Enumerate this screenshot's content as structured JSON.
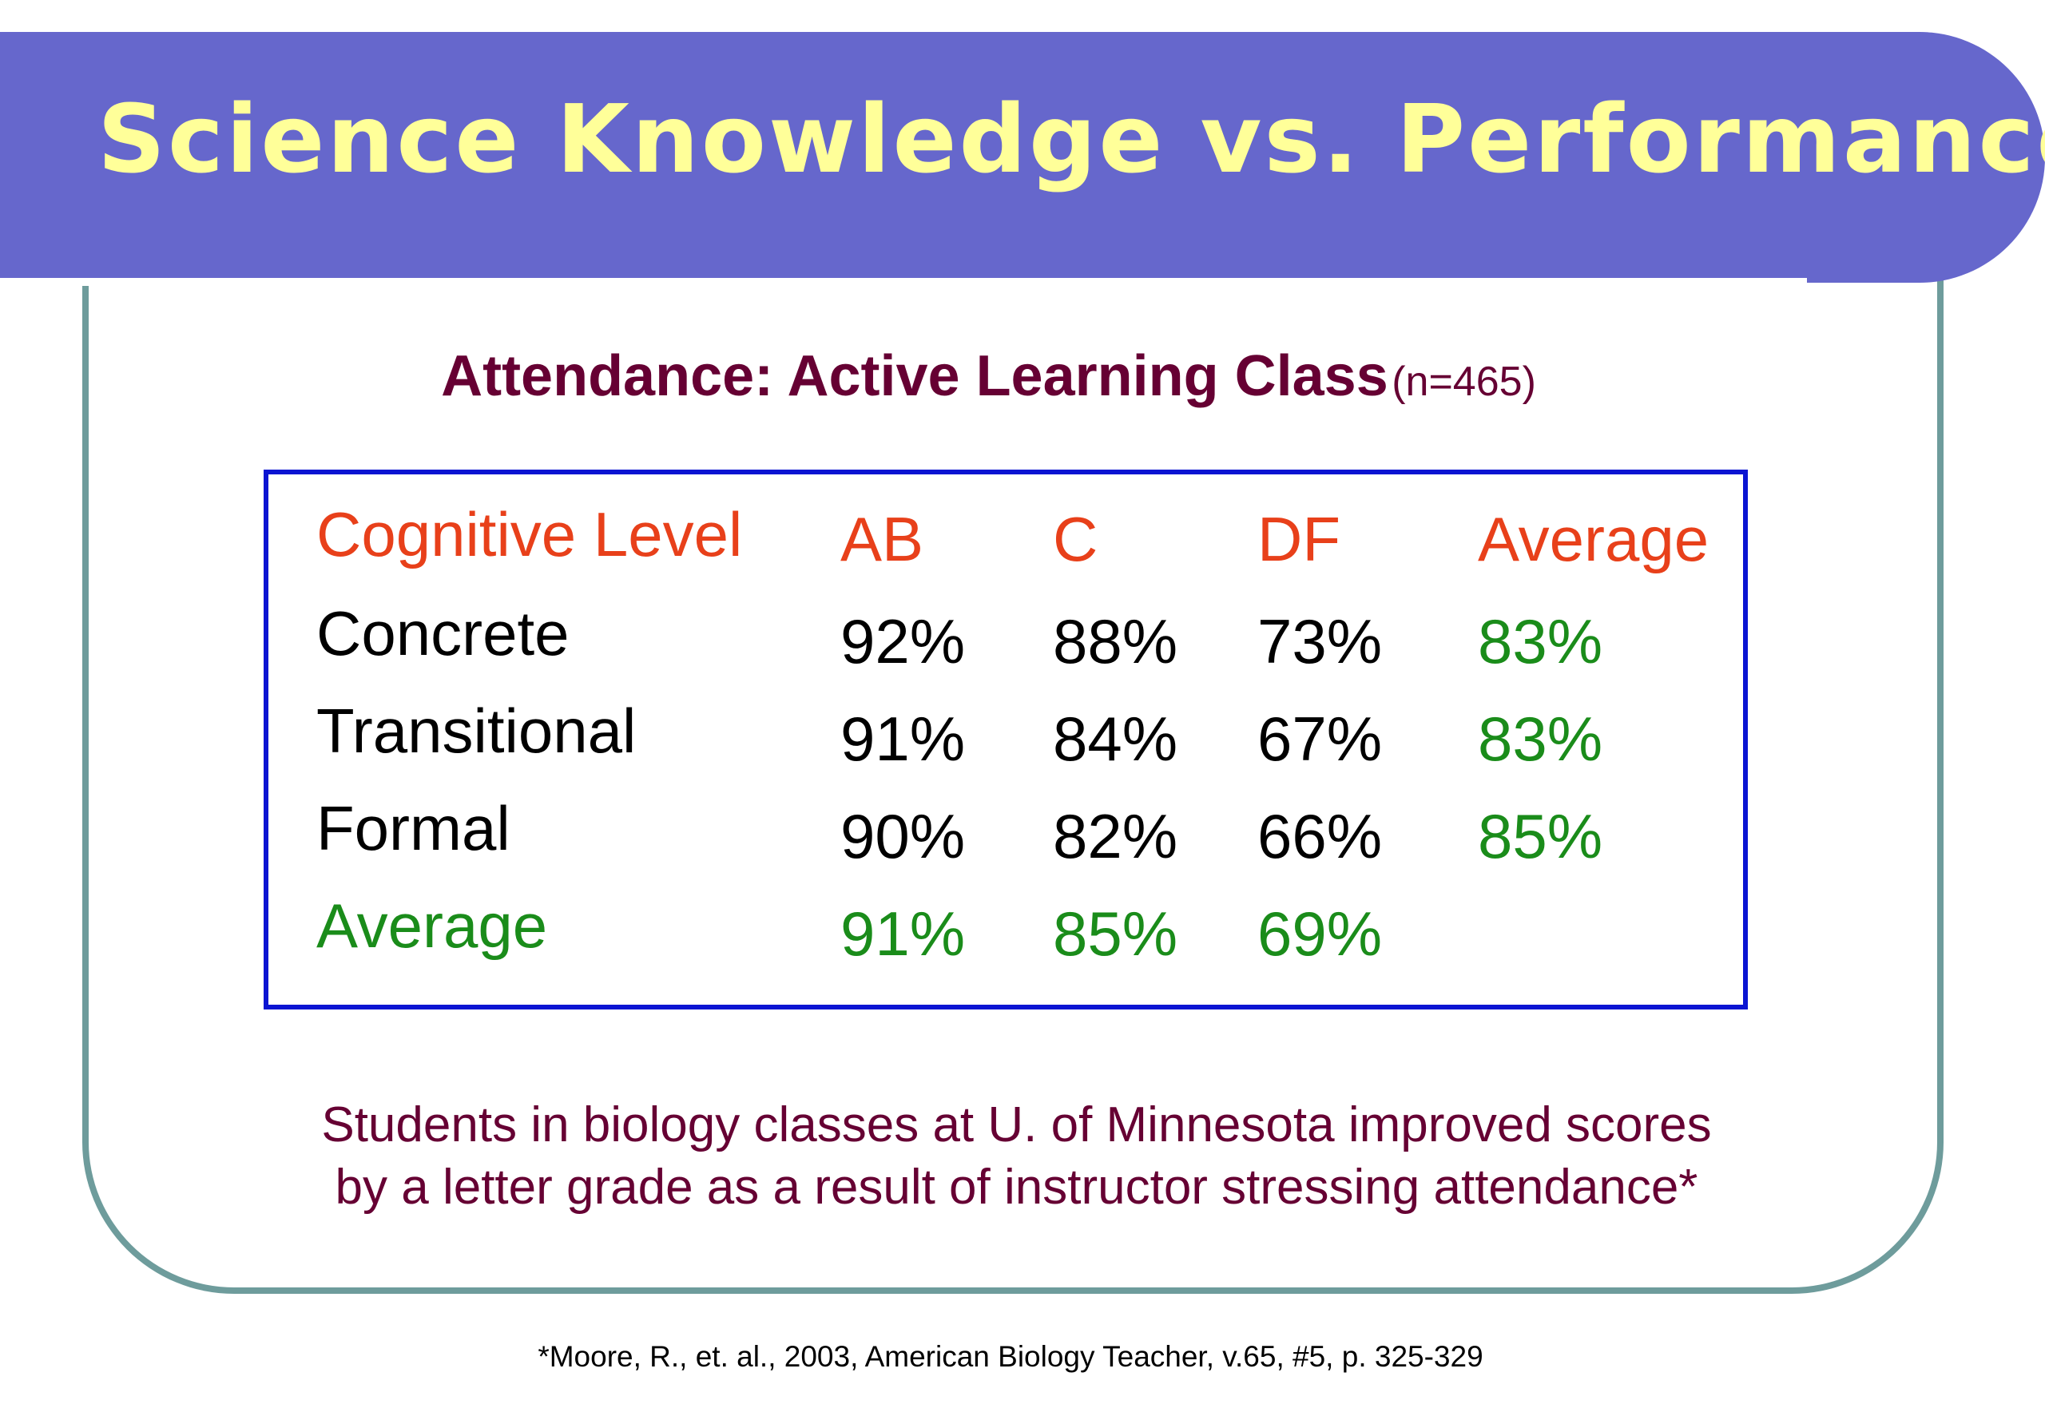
{
  "slide": {
    "title": "Science Knowledge vs. Performance",
    "subtitle": "Attendance: Active Learning Class",
    "subtitle_n": "(n=465)"
  },
  "table": {
    "headers": [
      "Cognitive Level",
      "AB",
      "C",
      "DF",
      "Average"
    ],
    "rows": [
      {
        "label": "Concrete",
        "values": [
          "92%",
          "88%",
          "73%",
          "83%"
        ]
      },
      {
        "label": "Transitional",
        "values": [
          "91%",
          "84%",
          "67%",
          "83%"
        ]
      },
      {
        "label": "Formal",
        "values": [
          "90%",
          "82%",
          "66%",
          "85%"
        ]
      },
      {
        "label": "Average",
        "values": [
          "91%",
          "85%",
          "69%",
          ""
        ]
      }
    ]
  },
  "note": {
    "line1": "Students in biology classes at U. of Minnesota improved scores",
    "line2": "by a letter grade as a result of instructor stressing attendance*"
  },
  "citation": "*Moore, R., et. al., 2003, American Biology Teacher, v.65, #5, p. 325-329",
  "colors": {
    "banner": "#6667cc",
    "title": "#ffff99",
    "header": "#e8401a",
    "average": "#1a8c1a",
    "subtitle": "#660033",
    "table_border": "#0a14d2",
    "frame": "#6e9c9c"
  }
}
